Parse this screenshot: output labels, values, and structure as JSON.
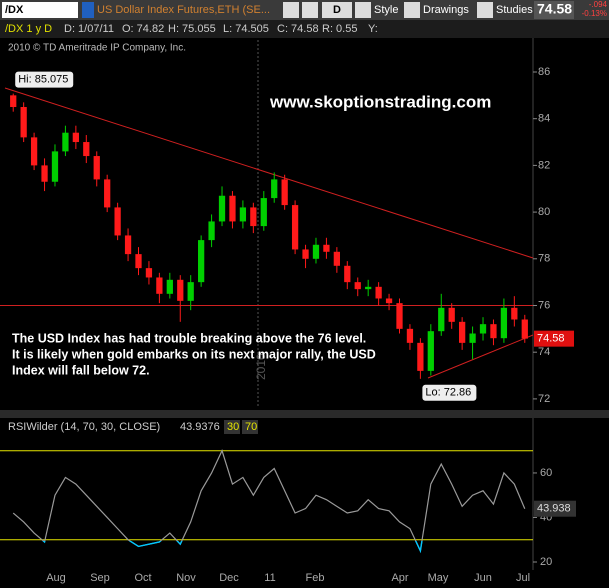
{
  "toolbar": {
    "symbol": "/DX",
    "description": "US Dollar Index Futures,ETH (SE...",
    "period": "D",
    "style": "Style",
    "drawings": "Drawings",
    "studies": "Studies",
    "last": "74.58",
    "change": "-.094",
    "change_pct": "-0.13%"
  },
  "info_bar": {
    "chart": "/DX 1 y D",
    "date": "D: 1/07/11",
    "open": "O: 74.82",
    "high": "H: 75.055",
    "low": "L: 74.505",
    "close": "C: 74.58",
    "range": "R: 0.55",
    "y": "Y:"
  },
  "chart_data": [
    {
      "type": "candlestick",
      "copyright": "2010 © TD Ameritrade IP Company, Inc.",
      "watermark": "www.skoptionstrading.com",
      "note": [
        "The USD Index has had trouble breaking above the 76 level.",
        "It is likely when gold embarks on its next major rally, the USD",
        "Index will fall below 72."
      ],
      "year_marker": "2010",
      "high_label": "Hi: 85.075",
      "low_label": "Lo: 72.86",
      "last_label": "74.58",
      "open": [
        85.0,
        84.5,
        83.2,
        82.0,
        81.3,
        82.6,
        83.4,
        83.0,
        82.4,
        81.4,
        80.2,
        79.0,
        78.2,
        77.6,
        77.2,
        76.5,
        77.1,
        76.2,
        77.0,
        78.8,
        79.6,
        80.7,
        79.6,
        80.2,
        79.4,
        80.6,
        81.4,
        80.3,
        78.4,
        78.0,
        78.6,
        78.3,
        77.7,
        77.0,
        76.7,
        76.8,
        76.3,
        76.1,
        75.0,
        74.4,
        73.2,
        74.9,
        75.9,
        75.3,
        74.4,
        74.8,
        75.2,
        74.6,
        75.9,
        75.4
      ],
      "high": [
        85.075,
        84.7,
        83.4,
        82.3,
        82.9,
        83.7,
        83.7,
        83.3,
        82.6,
        81.6,
        80.4,
        79.3,
        78.5,
        77.9,
        77.4,
        77.4,
        77.3,
        77.3,
        79.0,
        79.9,
        81.1,
        80.9,
        80.5,
        80.4,
        80.9,
        81.7,
        81.6,
        80.5,
        78.6,
        78.9,
        78.9,
        78.5,
        77.9,
        77.2,
        77.1,
        77.0,
        76.5,
        76.3,
        75.2,
        74.6,
        75.2,
        76.5,
        76.1,
        75.5,
        75.1,
        75.5,
        75.4,
        76.3,
        76.4,
        75.6
      ],
      "low": [
        84.3,
        83.0,
        81.8,
        80.9,
        81.1,
        82.4,
        82.7,
        82.1,
        81.1,
        80.0,
        78.8,
        77.9,
        77.3,
        76.9,
        76.1,
        76.3,
        75.3,
        75.8,
        76.8,
        78.5,
        79.4,
        79.3,
        79.3,
        79.1,
        79.2,
        80.4,
        80.1,
        78.2,
        77.6,
        77.8,
        78.0,
        77.4,
        76.7,
        76.4,
        76.4,
        76.0,
        75.8,
        74.8,
        74.1,
        72.86,
        73.0,
        74.7,
        75.0,
        74.1,
        73.7,
        74.5,
        74.3,
        74.4,
        75.1,
        74.4
      ],
      "close": [
        84.5,
        83.2,
        82.0,
        81.3,
        82.6,
        83.4,
        83.0,
        82.4,
        81.4,
        80.2,
        79.0,
        78.2,
        77.6,
        77.2,
        76.5,
        77.1,
        76.2,
        77.0,
        78.8,
        79.6,
        80.7,
        79.6,
        80.2,
        79.4,
        80.6,
        81.4,
        80.3,
        78.4,
        78.0,
        78.6,
        78.3,
        77.7,
        77.0,
        76.7,
        76.8,
        76.3,
        76.1,
        75.0,
        74.4,
        73.2,
        74.9,
        75.9,
        75.3,
        74.4,
        74.8,
        75.2,
        74.6,
        75.9,
        75.4,
        74.58
      ],
      "ylim": [
        71.61,
        87.37
      ],
      "yticks": [
        72,
        74,
        76,
        78,
        80,
        82,
        84,
        86
      ],
      "month_labels": [
        "Aug",
        "Sep",
        "Oct",
        "Nov",
        "Dec",
        "11",
        "Feb",
        "Apr",
        "May",
        "Jun",
        "Jul"
      ],
      "resistance": 76,
      "up_color": "#00d000",
      "down_color": "#ff1a1a"
    },
    {
      "type": "line",
      "title": "RSIWilder (14, 70, 30, CLOSE)",
      "title_value": "43.9376",
      "levels": [
        30,
        70
      ],
      "values": [
        42,
        38,
        33,
        29,
        50,
        58,
        55,
        50,
        45,
        40,
        35,
        30,
        27,
        28,
        29,
        33,
        28,
        38,
        52,
        60,
        70,
        55,
        58,
        50,
        58,
        62,
        52,
        42,
        44,
        50,
        48,
        45,
        42,
        43,
        48,
        44,
        43,
        38,
        35,
        25,
        55,
        64,
        55,
        45,
        50,
        52,
        46,
        60,
        55,
        43.9376
      ],
      "last_label": "43.938",
      "ylim": [
        16.4,
        78.4
      ],
      "yticks": [
        20,
        40,
        60
      ],
      "color": "#9a9a9a",
      "oversold_color": "#00c8ff",
      "level_color": "#e6e600"
    }
  ]
}
